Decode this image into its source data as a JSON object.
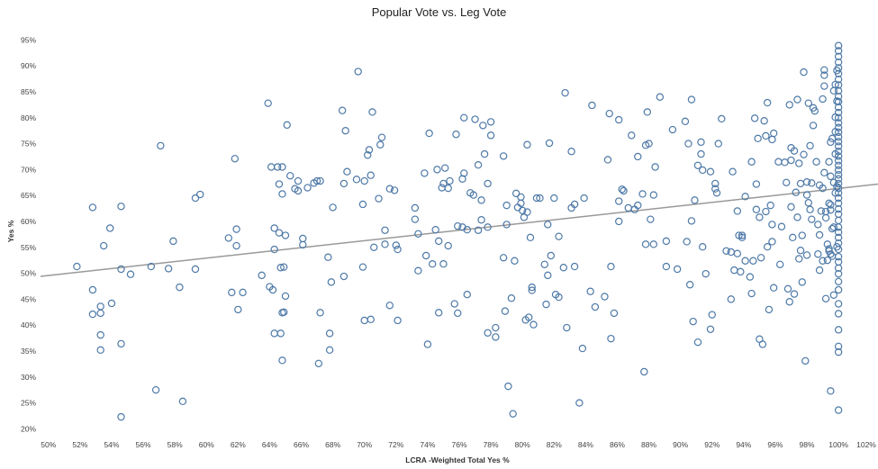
{
  "chart_data": {
    "type": "scatter",
    "title": "Popular Vote vs. Leg Vote",
    "xlabel": "LCRA -Weighted Total Yes %",
    "ylabel": "Yes %",
    "x_ticks": [
      "50%",
      "52%",
      "54%",
      "56%",
      "58%",
      "60%",
      "62%",
      "64%",
      "66%",
      "68%",
      "70%",
      "72%",
      "74%",
      "76%",
      "78%",
      "80%",
      "82%",
      "84%",
      "86%",
      "88%",
      "90%",
      "92%",
      "94%",
      "96%",
      "98%",
      "100%",
      "102%"
    ],
    "y_ticks": [
      "20%",
      "25%",
      "30%",
      "35%",
      "40%",
      "45%",
      "50%",
      "55%",
      "60%",
      "65%",
      "70%",
      "75%",
      "80%",
      "85%",
      "90%",
      "95%"
    ],
    "xlim": [
      49.5,
      102.5
    ],
    "ylim": [
      18.5,
      97.5
    ],
    "grid": false,
    "legend": "none",
    "trend_line": {
      "x": [
        49.5,
        102.5
      ],
      "y": [
        49.4,
        67.2
      ]
    },
    "colors": {
      "marker": "#4e79a7",
      "trend": "#999999"
    },
    "points": [
      [
        51.8,
        51.3
      ],
      [
        52.8,
        62.7
      ],
      [
        52.8,
        46.8
      ],
      [
        52.8,
        42.1
      ],
      [
        53.3,
        43.6
      ],
      [
        53.3,
        42.3
      ],
      [
        53.3,
        38.1
      ],
      [
        53.3,
        35.2
      ],
      [
        53.5,
        55.3
      ],
      [
        53.9,
        58.7
      ],
      [
        54.0,
        44.2
      ],
      [
        54.6,
        62.9
      ],
      [
        54.6,
        50.8
      ],
      [
        54.6,
        36.4
      ],
      [
        54.6,
        22.3
      ],
      [
        55.2,
        49.8
      ],
      [
        56.5,
        51.3
      ],
      [
        56.8,
        27.5
      ],
      [
        57.1,
        74.6
      ],
      [
        57.6,
        50.9
      ],
      [
        57.9,
        56.2
      ],
      [
        58.3,
        47.3
      ],
      [
        58.5,
        25.3
      ],
      [
        59.3,
        64.5
      ],
      [
        59.3,
        50.8
      ],
      [
        59.6,
        65.2
      ],
      [
        61.4,
        56.8
      ],
      [
        61.6,
        46.3
      ],
      [
        61.8,
        72.1
      ],
      [
        61.9,
        58.5
      ],
      [
        61.9,
        55.3
      ],
      [
        62.0,
        43.0
      ],
      [
        62.3,
        46.3
      ],
      [
        63.5,
        49.6
      ],
      [
        63.9,
        82.8
      ],
      [
        64.0,
        47.4
      ],
      [
        64.1,
        70.5
      ],
      [
        64.2,
        46.8
      ],
      [
        64.3,
        58.7
      ],
      [
        64.3,
        54.6
      ],
      [
        64.3,
        38.4
      ],
      [
        64.5,
        70.5
      ],
      [
        64.6,
        67.2
      ],
      [
        64.6,
        57.8
      ],
      [
        64.7,
        51.1
      ],
      [
        64.7,
        38.4
      ],
      [
        64.8,
        70.5
      ],
      [
        64.8,
        65.3
      ],
      [
        64.8,
        42.4
      ],
      [
        64.8,
        33.2
      ],
      [
        64.9,
        51.2
      ],
      [
        64.9,
        42.5
      ],
      [
        65.0,
        57.3
      ],
      [
        65.0,
        45.6
      ],
      [
        65.1,
        78.6
      ],
      [
        65.3,
        68.8
      ],
      [
        65.6,
        66.3
      ],
      [
        65.8,
        67.8
      ],
      [
        65.8,
        65.9
      ],
      [
        66.1,
        56.7
      ],
      [
        66.1,
        55.5
      ],
      [
        66.4,
        66.5
      ],
      [
        66.8,
        67.4
      ],
      [
        67.0,
        67.8
      ],
      [
        67.1,
        32.6
      ],
      [
        67.2,
        67.8
      ],
      [
        67.2,
        42.4
      ],
      [
        67.7,
        53.1
      ],
      [
        67.8,
        38.4
      ],
      [
        67.8,
        35.2
      ],
      [
        67.9,
        48.3
      ],
      [
        68.0,
        62.7
      ],
      [
        68.6,
        81.4
      ],
      [
        68.7,
        67.3
      ],
      [
        68.7,
        49.4
      ],
      [
        68.8,
        77.5
      ],
      [
        68.9,
        69.6
      ],
      [
        69.5,
        68.1
      ],
      [
        69.6,
        88.9
      ],
      [
        69.9,
        63.3
      ],
      [
        69.9,
        51.2
      ],
      [
        70.0,
        67.8
      ],
      [
        70.0,
        40.9
      ],
      [
        70.2,
        72.8
      ],
      [
        70.3,
        73.8
      ],
      [
        70.4,
        41.1
      ],
      [
        70.4,
        68.9
      ],
      [
        70.5,
        81.1
      ],
      [
        70.6,
        55.0
      ],
      [
        70.9,
        64.4
      ],
      [
        71.0,
        74.8
      ],
      [
        71.1,
        76.2
      ],
      [
        71.3,
        58.3
      ],
      [
        71.3,
        55.6
      ],
      [
        71.6,
        43.8
      ],
      [
        71.6,
        66.3
      ],
      [
        71.9,
        66.0
      ],
      [
        72.0,
        55.4
      ],
      [
        72.1,
        54.6
      ],
      [
        72.1,
        40.9
      ],
      [
        73.2,
        62.6
      ],
      [
        73.2,
        60.4
      ],
      [
        73.4,
        57.6
      ],
      [
        73.4,
        50.5
      ],
      [
        73.8,
        69.3
      ],
      [
        73.9,
        53.4
      ],
      [
        74.0,
        36.3
      ],
      [
        74.1,
        77.0
      ],
      [
        74.3,
        51.8
      ],
      [
        74.5,
        58.4
      ],
      [
        74.6,
        70.0
      ],
      [
        74.7,
        56.2
      ],
      [
        74.7,
        42.4
      ],
      [
        74.9,
        66.5
      ],
      [
        75.0,
        51.8
      ],
      [
        75.0,
        67.3
      ],
      [
        75.1,
        70.3
      ],
      [
        75.3,
        55.3
      ],
      [
        75.3,
        66.4
      ],
      [
        75.4,
        67.8
      ],
      [
        75.7,
        44.1
      ],
      [
        75.8,
        76.8
      ],
      [
        75.9,
        42.3
      ],
      [
        75.9,
        59.1
      ],
      [
        76.2,
        58.9
      ],
      [
        76.2,
        68.2
      ],
      [
        76.3,
        80.0
      ],
      [
        76.3,
        69.3
      ],
      [
        76.5,
        58.4
      ],
      [
        76.5,
        45.9
      ],
      [
        76.7,
        65.5
      ],
      [
        76.9,
        65.1
      ],
      [
        77.0,
        79.7
      ],
      [
        77.2,
        70.9
      ],
      [
        77.2,
        58.3
      ],
      [
        77.4,
        64.1
      ],
      [
        77.4,
        60.3
      ],
      [
        77.5,
        78.5
      ],
      [
        77.6,
        73.0
      ],
      [
        77.8,
        67.3
      ],
      [
        77.8,
        58.9
      ],
      [
        77.8,
        38.5
      ],
      [
        78.0,
        76.6
      ],
      [
        78.0,
        79.2
      ],
      [
        78.3,
        39.5
      ],
      [
        78.3,
        37.7
      ],
      [
        78.8,
        72.6
      ],
      [
        78.8,
        53.0
      ],
      [
        78.9,
        42.7
      ],
      [
        79.0,
        63.1
      ],
      [
        79.0,
        59.4
      ],
      [
        79.1,
        28.2
      ],
      [
        79.3,
        45.2
      ],
      [
        79.4,
        22.9
      ],
      [
        79.5,
        52.4
      ],
      [
        79.6,
        65.4
      ],
      [
        79.7,
        62.7
      ],
      [
        79.9,
        64.7
      ],
      [
        79.9,
        63.5
      ],
      [
        80.0,
        62.1
      ],
      [
        80.1,
        60.8
      ],
      [
        80.2,
        41.0
      ],
      [
        80.3,
        74.8
      ],
      [
        80.3,
        61.8
      ],
      [
        80.4,
        41.5
      ],
      [
        80.5,
        56.9
      ],
      [
        80.6,
        47.3
      ],
      [
        80.6,
        46.7
      ],
      [
        80.7,
        40.1
      ],
      [
        80.9,
        64.5
      ],
      [
        81.1,
        64.5
      ],
      [
        81.4,
        51.7
      ],
      [
        81.5,
        44.0
      ],
      [
        81.6,
        59.4
      ],
      [
        81.6,
        49.6
      ],
      [
        81.7,
        75.1
      ],
      [
        81.8,
        53.4
      ],
      [
        82.0,
        64.5
      ],
      [
        82.1,
        45.9
      ],
      [
        82.3,
        45.4
      ],
      [
        82.3,
        57.1
      ],
      [
        82.6,
        51.1
      ],
      [
        82.7,
        84.8
      ],
      [
        82.8,
        39.5
      ],
      [
        83.1,
        73.5
      ],
      [
        83.1,
        62.6
      ],
      [
        83.3,
        51.3
      ],
      [
        83.3,
        63.3
      ],
      [
        83.6,
        25.0
      ],
      [
        83.8,
        35.5
      ],
      [
        83.9,
        64.5
      ],
      [
        84.3,
        46.5
      ],
      [
        84.4,
        82.4
      ],
      [
        84.6,
        43.5
      ],
      [
        85.2,
        45.5
      ],
      [
        85.4,
        71.9
      ],
      [
        85.5,
        80.8
      ],
      [
        85.6,
        51.3
      ],
      [
        85.6,
        37.4
      ],
      [
        85.8,
        42.3
      ],
      [
        86.1,
        79.6
      ],
      [
        86.1,
        60.0
      ],
      [
        86.1,
        63.9
      ],
      [
        86.3,
        66.2
      ],
      [
        86.4,
        65.9
      ],
      [
        86.7,
        62.6
      ],
      [
        86.9,
        76.6
      ],
      [
        87.1,
        62.3
      ],
      [
        87.3,
        63.1
      ],
      [
        87.3,
        72.5
      ],
      [
        87.6,
        65.3
      ],
      [
        87.7,
        31.0
      ],
      [
        87.8,
        74.7
      ],
      [
        87.8,
        55.6
      ],
      [
        87.9,
        81.1
      ],
      [
        88.0,
        75.0
      ],
      [
        88.1,
        60.4
      ],
      [
        88.3,
        55.6
      ],
      [
        88.3,
        65.1
      ],
      [
        88.4,
        70.5
      ],
      [
        88.7,
        84.0
      ],
      [
        89.1,
        56.2
      ],
      [
        89.1,
        51.3
      ],
      [
        89.5,
        77.7
      ],
      [
        89.8,
        50.8
      ],
      [
        90.3,
        79.3
      ],
      [
        90.4,
        56.1
      ],
      [
        90.5,
        75.0
      ],
      [
        90.6,
        47.8
      ],
      [
        90.7,
        83.5
      ],
      [
        90.7,
        60.1
      ],
      [
        90.8,
        40.7
      ],
      [
        90.9,
        64.1
      ],
      [
        91.1,
        70.8
      ],
      [
        91.1,
        36.7
      ],
      [
        91.3,
        75.3
      ],
      [
        91.3,
        73.0
      ],
      [
        91.4,
        69.9
      ],
      [
        91.4,
        55.1
      ],
      [
        91.6,
        49.9
      ],
      [
        91.9,
        69.6
      ],
      [
        91.9,
        39.2
      ],
      [
        92.0,
        42.0
      ],
      [
        92.2,
        67.3
      ],
      [
        92.2,
        66.3
      ],
      [
        92.3,
        65.5
      ],
      [
        92.4,
        75.0
      ],
      [
        92.6,
        79.8
      ],
      [
        92.9,
        54.3
      ],
      [
        93.2,
        45.0
      ],
      [
        93.2,
        54.1
      ],
      [
        93.3,
        69.6
      ],
      [
        93.4,
        50.6
      ],
      [
        93.6,
        53.8
      ],
      [
        93.6,
        62.0
      ],
      [
        93.7,
        57.3
      ],
      [
        93.8,
        50.3
      ],
      [
        93.9,
        57.3
      ],
      [
        93.9,
        56.9
      ],
      [
        94.1,
        52.4
      ],
      [
        94.1,
        64.8
      ],
      [
        94.4,
        49.3
      ],
      [
        94.5,
        71.5
      ],
      [
        94.5,
        46.1
      ],
      [
        94.6,
        52.4
      ],
      [
        94.7,
        79.9
      ],
      [
        94.8,
        67.2
      ],
      [
        94.8,
        62.3
      ],
      [
        94.9,
        76.0
      ],
      [
        95.0,
        60.8
      ],
      [
        95.0,
        37.3
      ],
      [
        95.1,
        53.0
      ],
      [
        95.2,
        36.3
      ],
      [
        95.3,
        79.4
      ],
      [
        95.4,
        76.5
      ],
      [
        95.4,
        61.9
      ],
      [
        95.5,
        55.1
      ],
      [
        95.5,
        82.9
      ],
      [
        95.6,
        43.0
      ],
      [
        95.7,
        63.1
      ],
      [
        95.8,
        56.1
      ],
      [
        95.8,
        75.8
      ],
      [
        95.8,
        59.4
      ],
      [
        95.9,
        77.0
      ],
      [
        95.9,
        47.2
      ],
      [
        96.2,
        71.5
      ],
      [
        96.3,
        51.7
      ],
      [
        96.4,
        59.0
      ],
      [
        96.6,
        71.4
      ],
      [
        96.7,
        67.5
      ],
      [
        96.8,
        47.0
      ],
      [
        96.9,
        44.5
      ],
      [
        96.9,
        82.5
      ],
      [
        97.0,
        74.2
      ],
      [
        97.0,
        71.8
      ],
      [
        97.0,
        62.8
      ],
      [
        97.1,
        56.9
      ],
      [
        97.2,
        46.0
      ],
      [
        97.2,
        73.6
      ],
      [
        97.3,
        65.6
      ],
      [
        97.4,
        83.5
      ],
      [
        97.4,
        60.8
      ],
      [
        97.5,
        52.8
      ],
      [
        97.5,
        71.2
      ],
      [
        97.6,
        67.3
      ],
      [
        97.6,
        54.4
      ],
      [
        97.7,
        57.3
      ],
      [
        97.7,
        48.3
      ],
      [
        97.8,
        72.9
      ],
      [
        97.8,
        88.8
      ],
      [
        97.9,
        33.1
      ],
      [
        98.0,
        67.6
      ],
      [
        98.0,
        65.1
      ],
      [
        98.0,
        53.5
      ],
      [
        98.1,
        82.8
      ],
      [
        98.1,
        63.6
      ],
      [
        98.2,
        74.6
      ],
      [
        98.2,
        62.3
      ],
      [
        98.3,
        67.4
      ],
      [
        98.3,
        60.4
      ],
      [
        98.4,
        81.9
      ],
      [
        98.4,
        78.5
      ],
      [
        98.5,
        81.3
      ],
      [
        98.6,
        71.5
      ],
      [
        98.7,
        59.4
      ],
      [
        98.7,
        53.7
      ],
      [
        98.8,
        67.0
      ],
      [
        98.8,
        57.4
      ],
      [
        98.8,
        50.6
      ],
      [
        98.9,
        62.0
      ],
      [
        99.0,
        52.4
      ],
      [
        99.0,
        83.6
      ],
      [
        99.0,
        66.4
      ],
      [
        99.1,
        88.2
      ],
      [
        99.1,
        86.1
      ],
      [
        99.1,
        69.4
      ],
      [
        99.1,
        89.2
      ],
      [
        99.2,
        61.9
      ],
      [
        99.2,
        60.7
      ],
      [
        99.2,
        45.1
      ],
      [
        99.3,
        55.6
      ],
      [
        99.3,
        52.5
      ],
      [
        99.4,
        71.5
      ],
      [
        99.4,
        63.5
      ],
      [
        99.4,
        54.7
      ],
      [
        99.4,
        54.3
      ],
      [
        99.5,
        63.2
      ],
      [
        99.5,
        75.3
      ],
      [
        99.5,
        68.7
      ],
      [
        99.5,
        62.2
      ],
      [
        99.5,
        53.7
      ],
      [
        99.5,
        27.3
      ],
      [
        99.6,
        76.0
      ],
      [
        99.6,
        58.6
      ],
      [
        99.6,
        53.3
      ],
      [
        99.7,
        85.2
      ],
      [
        99.7,
        67.5
      ],
      [
        99.7,
        58.9
      ],
      [
        99.7,
        45.8
      ],
      [
        99.8,
        86.4
      ],
      [
        99.8,
        80.1
      ],
      [
        99.8,
        77.3
      ],
      [
        99.8,
        73.0
      ],
      [
        99.8,
        65.5
      ],
      [
        99.9,
        89.1
      ],
      [
        99.9,
        83.2
      ],
      [
        99.9,
        66.7
      ],
      [
        99.9,
        55.1
      ],
      [
        100,
        23.6
      ],
      [
        100,
        34.8
      ],
      [
        100,
        35.9
      ],
      [
        100,
        39.1
      ],
      [
        100,
        42.2
      ],
      [
        100,
        44.1
      ],
      [
        100,
        46.8
      ],
      [
        100,
        48.4
      ],
      [
        100,
        49.9
      ],
      [
        100,
        51.0
      ],
      [
        100,
        52.2
      ],
      [
        100,
        53.2
      ],
      [
        100,
        54.6
      ],
      [
        100,
        55.8
      ],
      [
        100,
        56.9
      ],
      [
        100,
        57.9
      ],
      [
        100,
        58.9
      ],
      [
        100,
        60.2
      ],
      [
        100,
        61.4
      ],
      [
        100,
        62.4
      ],
      [
        100,
        63.5
      ],
      [
        100,
        64.5
      ],
      [
        100,
        65.5
      ],
      [
        100,
        66.4
      ],
      [
        100,
        67.3
      ],
      [
        100,
        68.2
      ],
      [
        100,
        69.0
      ],
      [
        100,
        69.9
      ],
      [
        100,
        70.8
      ],
      [
        100,
        71.7
      ],
      [
        100,
        72.6
      ],
      [
        100,
        73.5
      ],
      [
        100,
        74.5
      ],
      [
        100,
        75.4
      ],
      [
        100,
        76.3
      ],
      [
        100,
        77.2
      ],
      [
        100,
        78.1
      ],
      [
        100,
        79.0
      ],
      [
        100,
        80.0
      ],
      [
        100,
        81.0
      ],
      [
        100,
        82.0
      ],
      [
        100,
        83.1
      ],
      [
        100,
        84.1
      ],
      [
        100,
        85.2
      ],
      [
        100,
        86.3
      ],
      [
        100,
        87.4
      ],
      [
        100,
        88.5
      ],
      [
        100,
        89.6
      ],
      [
        100,
        90.7
      ],
      [
        100,
        91.8
      ],
      [
        100,
        92.9
      ],
      [
        100,
        93.9
      ]
    ]
  }
}
